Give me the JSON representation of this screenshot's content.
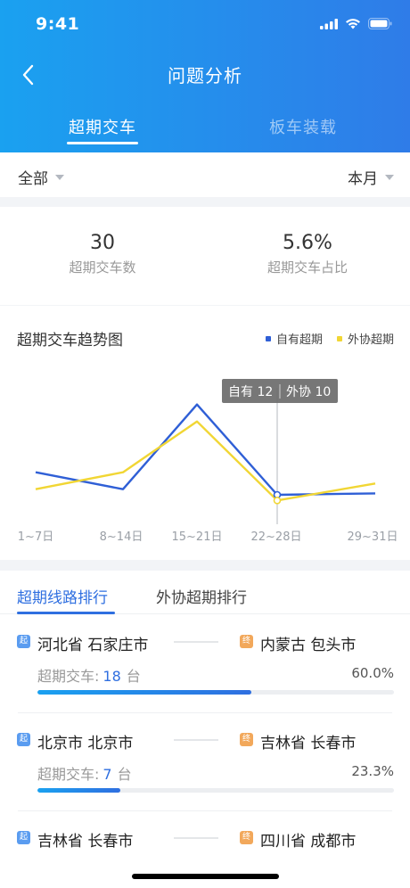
{
  "status_bar": {
    "time": "9:41"
  },
  "nav": {
    "title": "问题分析"
  },
  "top_tabs": [
    {
      "label": "超期交车",
      "active": true
    },
    {
      "label": "板车装载",
      "active": false
    }
  ],
  "filters": {
    "left": "全部",
    "right": "本月"
  },
  "summary": [
    {
      "value": "30",
      "label": "超期交车数"
    },
    {
      "value": "5.6%",
      "label": "超期交车占比"
    }
  ],
  "chart_data": {
    "type": "line",
    "title": "超期交车趋势图",
    "categories": [
      "1~7日",
      "8~14日",
      "15~21日",
      "22~28日",
      "29~31日"
    ],
    "x_positions": [
      0,
      1,
      2,
      3,
      4
    ],
    "series": [
      {
        "name": "自有超期",
        "color": "#2f5fd6",
        "values": [
          20,
          14,
          44,
          12,
          12.5
        ]
      },
      {
        "name": "外协超期",
        "color": "#f1d634",
        "values": [
          14,
          20,
          38,
          10,
          16
        ]
      }
    ],
    "tooltip": {
      "index": 3,
      "text_own": "自有 12",
      "text_outsource": "外协 10"
    },
    "ylim": [
      0,
      60
    ],
    "grid": false,
    "legend_position": "top-right"
  },
  "rank_tabs": [
    {
      "label": "超期线路排行",
      "active": true
    },
    {
      "label": "外协超期排行",
      "active": false
    }
  ],
  "routes": [
    {
      "from_badge": "起",
      "from": "河北省 石家庄市",
      "to_badge": "终",
      "to": "内蒙古 包头市",
      "count_label": "超期交车:",
      "count": "18",
      "unit": "台",
      "pct": "60.0%",
      "ratio": 0.6
    },
    {
      "from_badge": "起",
      "from": "北京市 北京市",
      "to_badge": "终",
      "to": "吉林省 长春市",
      "count_label": "超期交车:",
      "count": "7",
      "unit": "台",
      "pct": "23.3%",
      "ratio": 0.233
    },
    {
      "from_badge": "起",
      "from": "吉林省 长春市",
      "to_badge": "终",
      "to": "四川省 成都市"
    }
  ]
}
